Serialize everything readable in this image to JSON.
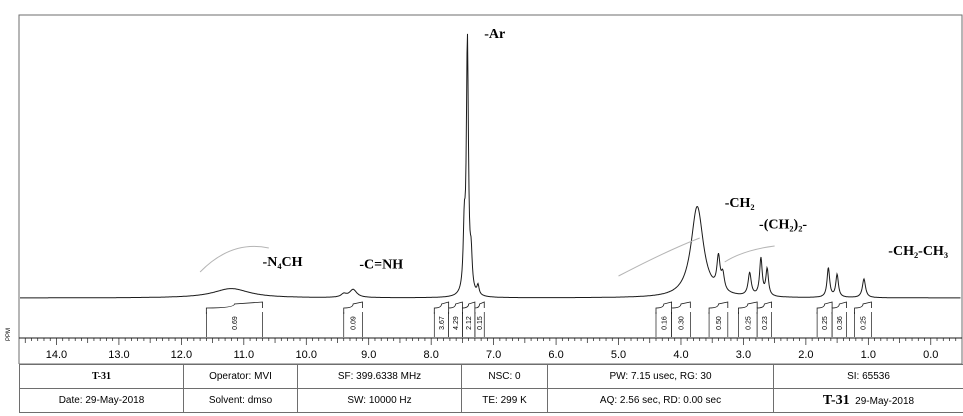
{
  "chart_data": {
    "type": "line",
    "title": "",
    "xlabel": "PPM",
    "ylabel": "",
    "xlim": [
      14.6,
      -0.5
    ],
    "x_ticks": [
      "14.0",
      "13.0",
      "12.0",
      "11.0",
      "10.0",
      "9.0",
      "8.0",
      "7.0",
      "6.0",
      "5.0",
      "4.0",
      "3.0",
      "2.0",
      "1.0",
      "0.0"
    ],
    "peaks": [
      {
        "ppm": 11.2,
        "height": 0.035,
        "width": 0.35
      },
      {
        "ppm": 9.25,
        "height": 0.03,
        "width": 0.07
      },
      {
        "ppm": 9.4,
        "height": 0.012,
        "width": 0.05
      },
      {
        "ppm": 7.42,
        "height": 0.95,
        "width": 0.02
      },
      {
        "ppm": 7.47,
        "height": 0.22,
        "width": 0.02
      },
      {
        "ppm": 7.36,
        "height": 0.12,
        "width": 0.02
      },
      {
        "ppm": 7.25,
        "height": 0.035,
        "width": 0.02
      },
      {
        "ppm": 3.74,
        "height": 0.34,
        "width": 0.12
      },
      {
        "ppm": 3.4,
        "height": 0.12,
        "width": 0.03
      },
      {
        "ppm": 3.33,
        "height": 0.06,
        "width": 0.03
      },
      {
        "ppm": 2.9,
        "height": 0.085,
        "width": 0.03
      },
      {
        "ppm": 2.72,
        "height": 0.14,
        "width": 0.025
      },
      {
        "ppm": 2.62,
        "height": 0.1,
        "width": 0.025
      },
      {
        "ppm": 1.64,
        "height": 0.11,
        "width": 0.025
      },
      {
        "ppm": 1.5,
        "height": 0.085,
        "width": 0.025
      },
      {
        "ppm": 1.07,
        "height": 0.07,
        "width": 0.03
      }
    ],
    "integrals": [
      {
        "from": 11.6,
        "to": 10.7,
        "value": "0.69"
      },
      {
        "from": 9.4,
        "to": 9.1,
        "value": "0.09"
      },
      {
        "from": 7.95,
        "to": 7.72,
        "value": "3.67"
      },
      {
        "from": 7.72,
        "to": 7.5,
        "value": "4.29"
      },
      {
        "from": 7.5,
        "to": 7.3,
        "value": "2.12"
      },
      {
        "from": 7.3,
        "to": 7.15,
        "value": "0.15"
      },
      {
        "from": 4.4,
        "to": 4.15,
        "value": "0.16"
      },
      {
        "from": 4.15,
        "to": 3.85,
        "value": "0.30"
      },
      {
        "from": 3.55,
        "to": 3.25,
        "value": "0.50"
      },
      {
        "from": 3.08,
        "to": 2.78,
        "value": "0.25"
      },
      {
        "from": 2.78,
        "to": 2.55,
        "value": "0.23"
      },
      {
        "from": 1.82,
        "to": 1.58,
        "value": "0.25"
      },
      {
        "from": 1.58,
        "to": 1.35,
        "value": "0.36"
      },
      {
        "from": 1.22,
        "to": 0.95,
        "value": "0.25"
      }
    ],
    "annotations": [
      {
        "text": "-Ar",
        "ppm": 7.15,
        "anchor": "start",
        "level": 0.97
      },
      {
        "text": "-N₄CH",
        "ppm": 10.7,
        "anchor": "start",
        "level": 0.12
      },
      {
        "text": "-C=NH",
        "ppm": 9.15,
        "anchor": "start",
        "level": 0.11
      },
      {
        "text": "-CH₂",
        "ppm": 3.3,
        "anchor": "start",
        "level": 0.34
      },
      {
        "text": "-(CH₂)₂-",
        "ppm": 2.75,
        "anchor": "start",
        "level": 0.26
      },
      {
        "text": "-CH₂-CH₃",
        "ppm": 0.68,
        "anchor": "start",
        "level": 0.16
      }
    ],
    "grid": false,
    "legend": "none"
  },
  "table": {
    "sample": "T-31",
    "operator": "Operator: MVI",
    "sf": "SF: 399.6338 MHz",
    "nsc": "NSC: 0",
    "pw": "PW: 7.15 usec, RG: 30",
    "si": "SI: 65536",
    "date": "Date: 29-May-2018",
    "solvent": "Solvent: dmso",
    "sw": "SW: 10000 Hz",
    "te": "TE: 299 K",
    "aq": "AQ: 2.56 sec, RD: 0.00 sec",
    "footer_sample": "T-31",
    "footer_date": "29-May-2018"
  },
  "colors": {
    "line": "#1a1a1a",
    "frame": "#6e6e6e",
    "integral_curve": "#b5b5b5"
  }
}
